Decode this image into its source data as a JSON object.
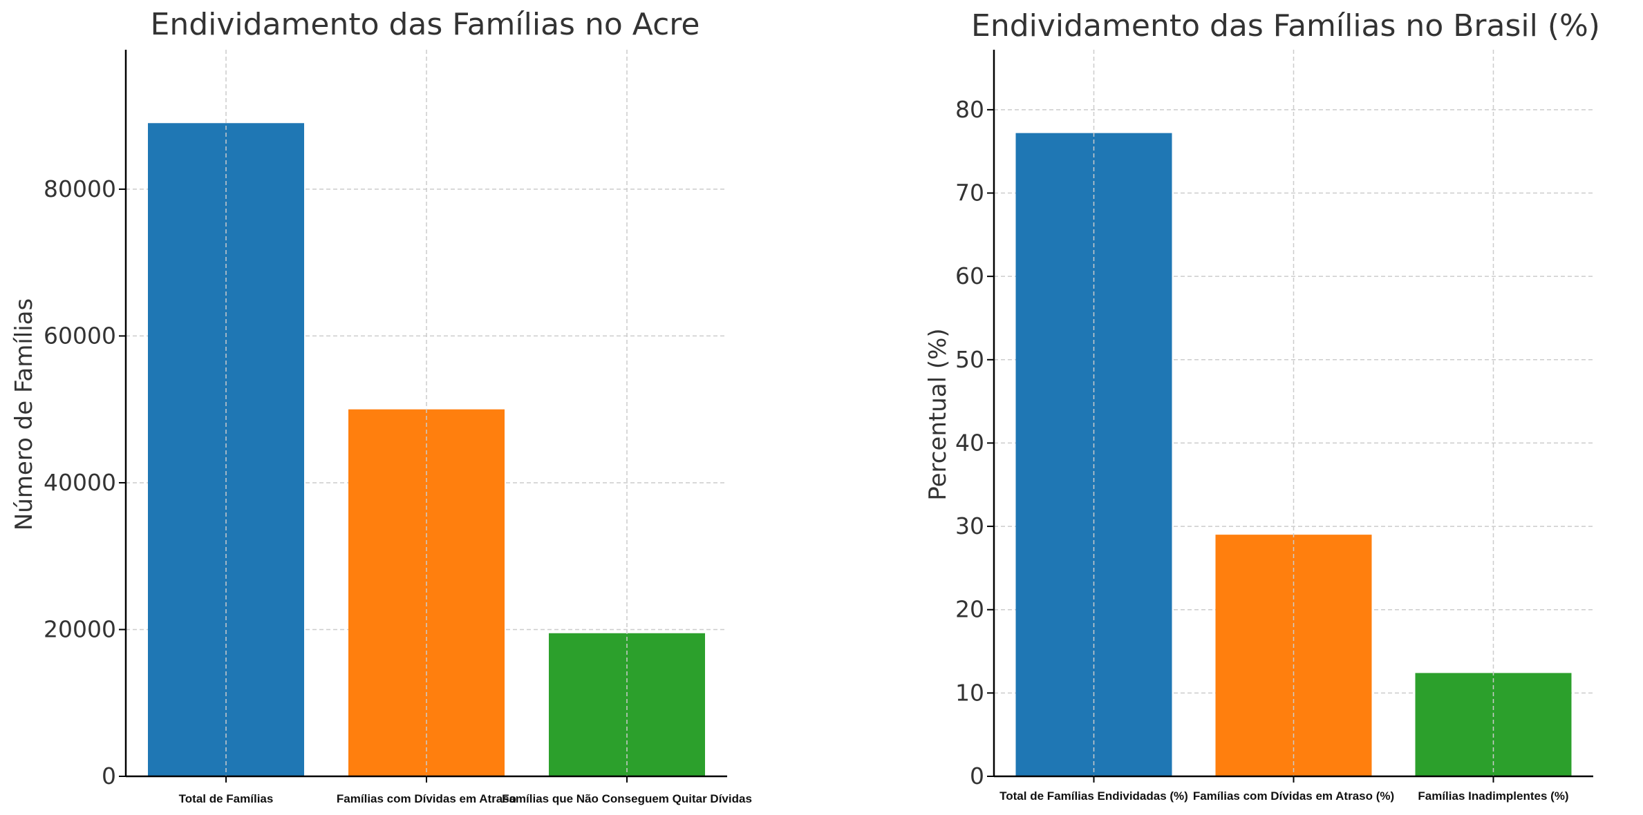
{
  "chart_data": [
    {
      "type": "bar",
      "title": "Endividamento das Famílias no Acre",
      "xlabel": "",
      "ylabel": "Número de Famílias",
      "categories": [
        "Total de Famílias",
        "Famílias com Dívidas em Atraso",
        "Famílias que Não Conseguem Quitar Dívidas"
      ],
      "values": [
        89000,
        50000,
        19500
      ],
      "colors": [
        "#1f77b4",
        "#ff7f0e",
        "#2ca02c"
      ],
      "ylim": [
        0,
        99000
      ],
      "yticks": [
        0,
        20000,
        40000,
        60000,
        80000
      ],
      "grid": true
    },
    {
      "type": "bar",
      "title": "Endividamento das Famílias no Brasil (%)",
      "xlabel": "",
      "ylabel": "Percentual (%)",
      "categories": [
        "Total de Famílias Endividadas (%)",
        "Famílias com Dívidas em Atraso (%)",
        "Famílias Inadimplentes (%)"
      ],
      "values": [
        77.2,
        29.0,
        12.4
      ],
      "colors": [
        "#1f77b4",
        "#ff7f0e",
        "#2ca02c"
      ],
      "ylim": [
        0,
        87.2
      ],
      "yticks": [
        0,
        10,
        20,
        30,
        40,
        50,
        60,
        70,
        80
      ],
      "grid": true
    }
  ]
}
